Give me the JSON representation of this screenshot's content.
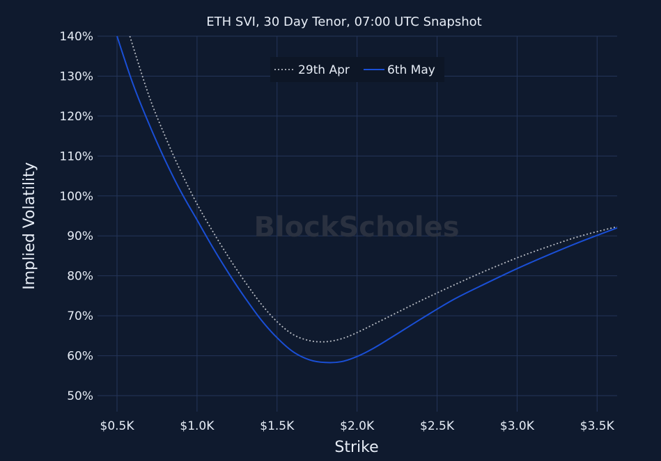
{
  "chart_data": {
    "type": "line",
    "title": "ETH SVI, 30 Day Tenor, 07:00 UTC Snapshot",
    "xlabel": "Strike",
    "ylabel": "Implied Volatility",
    "xlim": [
      500,
      3625
    ],
    "ylim": [
      46,
      140
    ],
    "x_ticks": [
      500,
      1000,
      1500,
      2000,
      2500,
      3000,
      3500
    ],
    "x_tick_labels": [
      "$0.5K",
      "$1.0K",
      "$1.5K",
      "$2.0K",
      "$2.5K",
      "$3.0K",
      "$3.5K"
    ],
    "y_ticks": [
      50,
      60,
      70,
      80,
      90,
      100,
      110,
      120,
      130,
      140
    ],
    "y_tick_labels": [
      "50%",
      "60%",
      "70%",
      "80%",
      "90%",
      "100%",
      "110%",
      "120%",
      "130%",
      "140%"
    ],
    "grid": true,
    "legend_position": "top-center",
    "watermark": "BlockScholes",
    "series": [
      {
        "name": "29th Apr",
        "style": "dotted",
        "color": "#b8bcc4",
        "x": [
          580,
          700,
          800,
          900,
          1000,
          1100,
          1200,
          1300,
          1400,
          1500,
          1600,
          1700,
          1800,
          1900,
          2000,
          2200,
          2400,
          2600,
          2800,
          3000,
          3200,
          3400,
          3625
        ],
        "y": [
          140,
          125,
          115,
          106,
          98,
          91,
          84.5,
          78.5,
          73,
          68.5,
          65.3,
          63.8,
          63.5,
          64.2,
          65.8,
          69.8,
          73.8,
          77.6,
          81.2,
          84.5,
          87.4,
          90,
          92.3
        ]
      },
      {
        "name": "6th May",
        "style": "solid",
        "color": "#1a4fd6",
        "x": [
          500,
          600,
          700,
          800,
          900,
          1000,
          1100,
          1200,
          1300,
          1400,
          1500,
          1600,
          1700,
          1800,
          1900,
          2000,
          2100,
          2200,
          2400,
          2600,
          2800,
          3000,
          3200,
          3400,
          3625
        ],
        "y": [
          140,
          128,
          118,
          109,
          101,
          94,
          87,
          80.5,
          74.5,
          69,
          64.5,
          61,
          59,
          58.3,
          58.5,
          59.8,
          61.8,
          64.2,
          69.2,
          74,
          78,
          81.8,
          85.3,
          88.6,
          92
        ]
      }
    ]
  }
}
